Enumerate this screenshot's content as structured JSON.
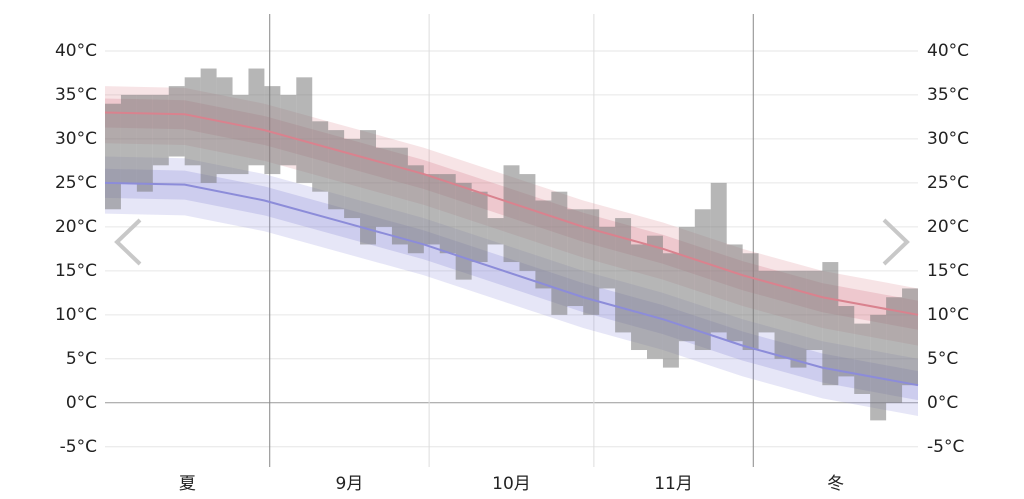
{
  "chart_data": {
    "type": "temperature-range",
    "xlim": [
      0,
      153
    ],
    "ylim": [
      -7.3,
      44.2
    ],
    "yticks": [
      {
        "value": -5,
        "label": "-5°C"
      },
      {
        "value": 0,
        "label": "0°C"
      },
      {
        "value": 5,
        "label": "5°C"
      },
      {
        "value": 10,
        "label": "10°C"
      },
      {
        "value": 15,
        "label": "15°C"
      },
      {
        "value": 20,
        "label": "20°C"
      },
      {
        "value": 25,
        "label": "25°C"
      },
      {
        "value": 30,
        "label": "30°C"
      },
      {
        "value": 35,
        "label": "35°C"
      },
      {
        "value": 40,
        "label": "40°C"
      }
    ],
    "xticks": [
      {
        "value": 15.5,
        "label": "夏"
      },
      {
        "value": 46,
        "label": "9月"
      },
      {
        "value": 76.5,
        "label": "10月"
      },
      {
        "value": 107,
        "label": "11月"
      },
      {
        "value": 137.5,
        "label": "冬"
      }
    ],
    "month_boundaries": [
      31,
      61,
      92,
      122
    ],
    "season_boundaries": [
      31,
      122
    ],
    "grid": true,
    "bands": {
      "x": [
        0,
        15,
        30,
        45,
        60,
        75,
        90,
        105,
        120,
        135,
        153
      ],
      "high": {
        "color": "#d9828e",
        "p10": [
          29.5,
          29.3,
          27.5,
          25,
          22.5,
          19.5,
          16.5,
          14,
          11,
          8.5,
          6.5
        ],
        "p25": [
          31.3,
          31.1,
          29.3,
          26.8,
          24.3,
          21.3,
          18.3,
          15.8,
          12.8,
          10.3,
          8.3
        ],
        "mean": [
          33,
          32.8,
          31,
          28.5,
          26,
          23,
          20,
          17.5,
          14.5,
          12,
          10
        ],
        "p75": [
          34.6,
          34.4,
          32.6,
          30.1,
          27.6,
          24.6,
          21.6,
          19.1,
          16.1,
          13.6,
          11.6
        ],
        "p90": [
          36,
          35.8,
          34,
          31.5,
          29,
          26,
          23,
          20.5,
          17.5,
          15,
          13
        ]
      },
      "low": {
        "color": "#8c8cd9",
        "p10": [
          21.5,
          21.3,
          19.5,
          17,
          14.5,
          11.5,
          8.5,
          6,
          3,
          0.5,
          -1.5
        ],
        "p25": [
          23.3,
          23.1,
          21.3,
          18.8,
          16.3,
          13.3,
          10.3,
          7.8,
          4.8,
          2.3,
          0.3
        ],
        "mean": [
          25,
          24.8,
          23,
          20.5,
          18,
          15,
          12,
          9.5,
          6.5,
          4,
          2
        ],
        "p75": [
          26.6,
          26.4,
          24.6,
          22.1,
          19.6,
          16.6,
          13.6,
          11.1,
          8.1,
          5.6,
          3.6
        ],
        "p90": [
          28,
          27.8,
          26,
          23.5,
          21,
          18,
          15,
          12.5,
          9.5,
          7,
          5
        ]
      }
    },
    "bars": {
      "color": "#7a7a7a",
      "x": [
        0,
        3,
        6,
        9,
        12,
        15,
        18,
        21,
        24,
        27,
        30,
        33,
        36,
        39,
        42,
        45,
        48,
        51,
        54,
        57,
        60,
        63,
        66,
        69,
        72,
        75,
        78,
        81,
        84,
        87,
        90,
        93,
        96,
        99,
        102,
        105,
        108,
        111,
        114,
        117,
        120,
        123,
        126,
        129,
        132,
        135,
        138,
        141,
        144,
        147,
        150
      ],
      "lows": [
        22,
        25,
        24,
        27,
        28,
        27,
        25,
        26,
        26,
        27,
        26,
        27,
        25,
        24,
        22,
        21,
        18,
        20,
        18,
        17,
        18,
        17,
        14,
        16,
        18,
        16,
        15,
        13,
        10,
        11,
        10,
        13,
        8,
        6,
        5,
        4,
        7,
        6,
        8,
        7,
        6,
        8,
        5,
        4,
        6,
        2,
        3,
        1,
        -2,
        0,
        2
      ],
      "highs": [
        34,
        35,
        35,
        35,
        36,
        37,
        38,
        37,
        35,
        38,
        36,
        35,
        37,
        32,
        31,
        30,
        31,
        29,
        29,
        27,
        26,
        26,
        25,
        24,
        21,
        27,
        26,
        23,
        24,
        22,
        22,
        20,
        21,
        18,
        19,
        17,
        20,
        22,
        25,
        18,
        17,
        15,
        15,
        15,
        15,
        16,
        11,
        9,
        10,
        12,
        13
      ]
    }
  }
}
